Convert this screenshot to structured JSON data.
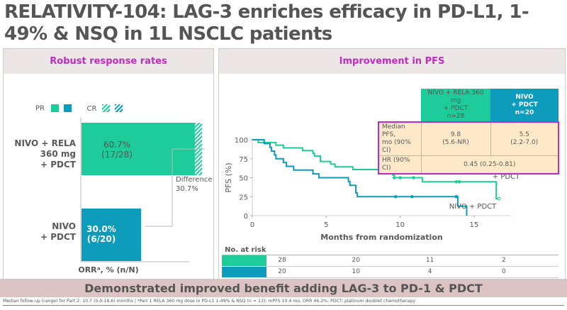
{
  "title": "RELATIVITY-104: LAG-3 enriches efficacy in PD-L1, 1-49% & NSQ in 1L NSCLC patients",
  "colors": {
    "green": "#1dcc9a",
    "blue": "#0d9cbc",
    "magenta": "#c02cbf",
    "table_bg": "#fde8c8"
  },
  "left_panel": {
    "header": "Robust response rates",
    "legend": {
      "pr_label": "PR",
      "cr_label": "CR"
    },
    "xlabel": "ORRᵃ, % (n/N)",
    "difference_label": "Difference",
    "difference_value": "30.7%"
  },
  "right_panel": {
    "header": "Improvement in PFS",
    "table": {
      "col1": [
        "NIVO + RELA 360 mg",
        "+ PDCT",
        "n=28"
      ],
      "col2": [
        "NIVO",
        "+ PDCT",
        "n=20"
      ],
      "row1_label": [
        "Median PFS,",
        "mo (90% CI)"
      ],
      "row1_c1": [
        "9.8",
        "(5.6-NR)"
      ],
      "row1_c2": [
        "5.5",
        "(2.2-7.0)"
      ],
      "row2_label": "HR (90% CI)",
      "row2_value": "0.45 (0.25-0.81)"
    },
    "risk": {
      "title": "No. at risk",
      "rows": [
        [
          "28",
          "20",
          "11",
          "2"
        ],
        [
          "20",
          "10",
          "4",
          "0"
        ]
      ]
    }
  },
  "banner": "Demonstrated improved benefit adding LAG-3 to PD-1 & PDCT",
  "footnote": "Median follow-up (range) for Part 2: 10.7 (0.0-18.6) months | ᵃPart 1 RELA 360 mg dose in PD-L1 1-49% & NSQ (n = 13): mPFS 10.4 mo, ORR 46.2%; PDCT: platinum doublet chemotherapy",
  "chart_data": [
    {
      "type": "bar",
      "title": "Robust response rates",
      "orientation": "horizontal",
      "categories": [
        "NIVO + RELA 360 mg + PDCT",
        "NIVO + PDCT"
      ],
      "series": [
        {
          "name": "PR",
          "values": [
            57.1,
            30.0
          ]
        },
        {
          "name": "CR",
          "values": [
            3.6,
            0.0
          ]
        }
      ],
      "totals": [
        60.7,
        30.0
      ],
      "labels": [
        [
          "60.7%",
          "(17/28)"
        ],
        [
          "30.0%",
          "(6/20)"
        ]
      ],
      "xlabel": "ORRᵃ, % (n/N)",
      "xlim": [
        0,
        100
      ],
      "annotation": "Difference 30.7%"
    },
    {
      "type": "line",
      "title": "Improvement in PFS",
      "xlabel": "Months from randomization",
      "ylabel": "PFS (%)",
      "xlim": [
        0,
        17.5
      ],
      "ylim": [
        0,
        100
      ],
      "xticks": [
        0,
        5,
        10,
        15
      ],
      "yticks": [
        0,
        25,
        50,
        75,
        100
      ],
      "series": [
        {
          "name": "NIVO + RELA 360 mg + PDCT",
          "step": true,
          "x": [
            0,
            0.4,
            1.3,
            1.6,
            2.1,
            3.4,
            4.1,
            4.2,
            4.6,
            5.3,
            5.6,
            6.8,
            8.8,
            9.5,
            9.6,
            9.8,
            11.5,
            16.5,
            16.7
          ],
          "y": [
            100,
            96.4,
            96.4,
            92.9,
            89.3,
            85.7,
            82.1,
            78.6,
            71.4,
            67.9,
            64.3,
            60.7,
            57.1,
            53.6,
            50.0,
            50.0,
            44.6,
            22.3,
            22.3
          ],
          "censored_x": [
            9.6,
            10.0,
            10.9,
            13.8,
            14.0,
            16.7
          ]
        },
        {
          "name": "NIVO + PDCT",
          "step": true,
          "x": [
            0,
            0.8,
            1.2,
            1.3,
            1.5,
            1.6,
            2.1,
            2.3,
            2.8,
            4.1,
            4.5,
            6.5,
            6.6,
            7.0,
            7.1,
            13.9,
            14.5,
            14.5
          ],
          "y": [
            100,
            95,
            90,
            85,
            80,
            75,
            70,
            65,
            60,
            55,
            50,
            45,
            40,
            30,
            25,
            12.5,
            12.5,
            0
          ],
          "censored_x": [
            9.7,
            10.8,
            13.8
          ]
        }
      ],
      "series_labels": [
        "NIVO + RELA 360 mg + PDCT",
        "NIVO + PDCT"
      ]
    }
  ]
}
